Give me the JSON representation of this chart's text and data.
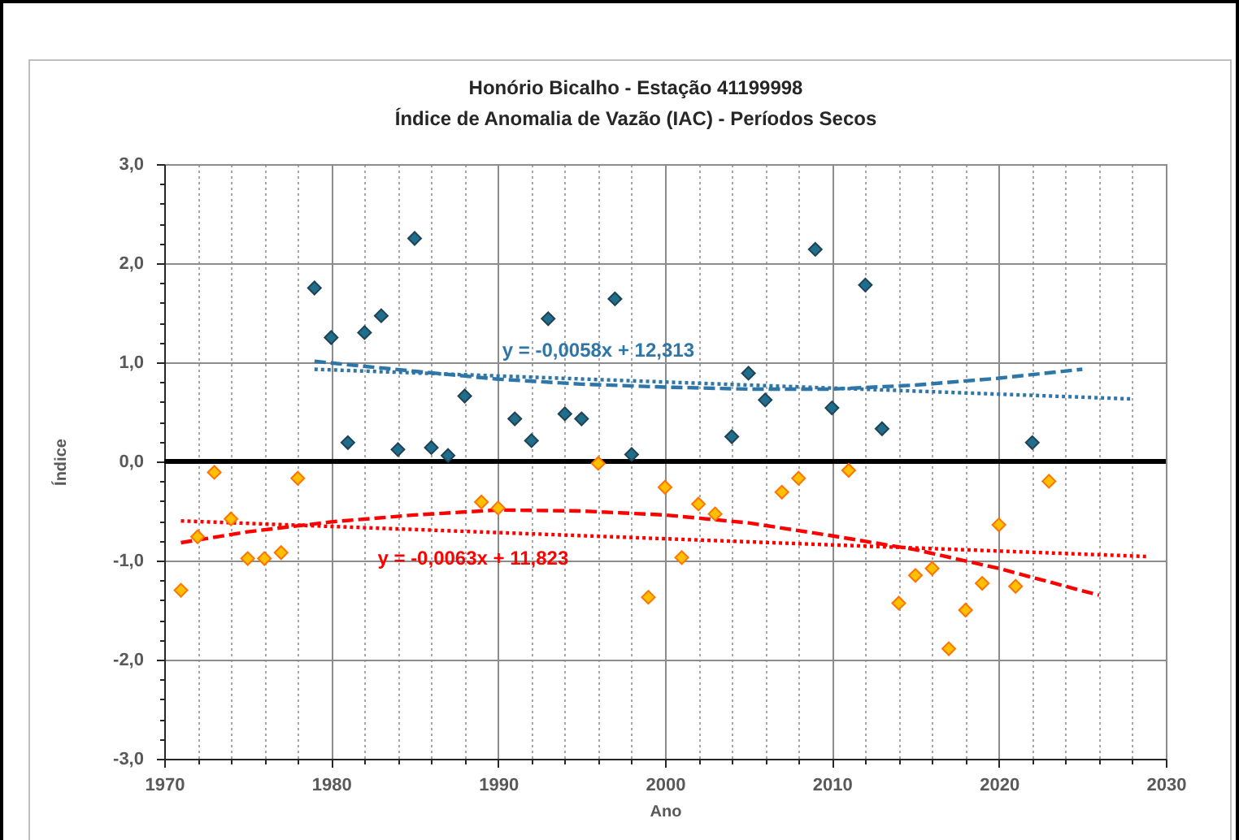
{
  "chart_data": {
    "type": "scatter",
    "title": "Honório Bicalho - Estação 41199998",
    "subtitle": "Índice de Anomalia de Vazão (IAC) - Períodos Secos",
    "xlabel": "Ano",
    "ylabel": "Índice",
    "xlim": [
      1970,
      2030
    ],
    "xticks": [
      1970,
      {
        "value": 1972,
        "label": null
      },
      {
        "value": 1974,
        "label": null
      },
      {
        "value": 1976,
        "label": null
      },
      {
        "value": 1978,
        "label": null
      },
      1980,
      {
        "value": 1982,
        "label": null
      },
      {
        "value": 1984,
        "label": null
      },
      {
        "value": 1986,
        "label": null
      },
      {
        "value": 1988,
        "label": null
      },
      1990,
      {
        "value": 1992,
        "label": null
      },
      {
        "value": 1994,
        "label": null
      },
      {
        "value": 1996,
        "label": null
      },
      {
        "value": 1998,
        "label": null
      },
      2000,
      {
        "value": 2002,
        "label": null
      },
      {
        "value": 2004,
        "label": null
      },
      {
        "value": 2006,
        "label": null
      },
      {
        "value": 2008,
        "label": null
      },
      2010,
      {
        "value": 2012,
        "label": null
      },
      {
        "value": 2014,
        "label": null
      },
      {
        "value": 2016,
        "label": null
      },
      {
        "value": 2018,
        "label": null
      },
      2020,
      {
        "value": 2022,
        "label": null
      },
      {
        "value": 2024,
        "label": null
      },
      {
        "value": 2026,
        "label": null
      },
      {
        "value": 2028,
        "label": null
      },
      2030
    ],
    "ylim": [
      -3,
      3
    ],
    "yticks": [
      {
        "value": -3,
        "label": "-3,0"
      },
      {
        "value": -2.8,
        "label": null
      },
      {
        "value": -2.6,
        "label": null
      },
      {
        "value": -2.4,
        "label": null
      },
      {
        "value": -2.2,
        "label": null
      },
      {
        "value": -2,
        "label": "-2,0"
      },
      {
        "value": -1.8,
        "label": null
      },
      {
        "value": -1.6,
        "label": null
      },
      {
        "value": -1.4,
        "label": null
      },
      {
        "value": -1.2,
        "label": null
      },
      {
        "value": -1,
        "label": "-1,0"
      },
      {
        "value": -0.8,
        "label": null
      },
      {
        "value": -0.6,
        "label": null
      },
      {
        "value": -0.4,
        "label": null
      },
      {
        "value": -0.2,
        "label": null
      },
      {
        "value": 0,
        "label": "0,0"
      },
      {
        "value": 0.2,
        "label": null
      },
      {
        "value": 0.4,
        "label": null
      },
      {
        "value": 0.6,
        "label": null
      },
      {
        "value": 0.8,
        "label": null
      },
      {
        "value": 1,
        "label": "1,0"
      },
      {
        "value": 1.2,
        "label": null
      },
      {
        "value": 1.4,
        "label": null
      },
      {
        "value": 1.6,
        "label": null
      },
      {
        "value": 1.8,
        "label": null
      },
      {
        "value": 2,
        "label": "2,0"
      },
      {
        "value": 2.2,
        "label": null
      },
      {
        "value": 2.4,
        "label": null
      },
      {
        "value": 2.6,
        "label": null
      },
      {
        "value": 2.8,
        "label": null
      },
      {
        "value": 3,
        "label": "3,0"
      }
    ],
    "grid": true,
    "ref_lines": [
      {
        "axis": "y",
        "value": 0,
        "color": "#000000"
      }
    ],
    "annotations": [
      {
        "text": "y = -0,0058x + 12,313",
        "x": 1996,
        "y": 0.83
      },
      {
        "text": "y = -0,0063x + 11,823",
        "x": 1988.5,
        "y": -0.71
      }
    ],
    "series": [
      {
        "color": "#1f6e8c",
        "marker": "diamond",
        "x": [
          1979,
          1980,
          1981,
          1982,
          1983,
          1984,
          1985,
          1986,
          1987,
          1988,
          1991,
          1992,
          1993,
          1994,
          1995,
          1997,
          1998,
          2004,
          2005,
          2006,
          2009,
          2010,
          2012,
          2013,
          2022
        ],
        "values": [
          1.75,
          1.25,
          0.19,
          1.3,
          1.47,
          0.12,
          2.25,
          0.14,
          0.06,
          0.66,
          0.43,
          0.21,
          1.44,
          0.48,
          0.43,
          1.64,
          0.07,
          0.25,
          0.89,
          0.62,
          2.14,
          0.54,
          1.78,
          0.33,
          0.19
        ]
      },
      {
        "color": "#ffc000",
        "marker": "diamond",
        "x": [
          1971,
          1972,
          1973,
          1974,
          1975,
          1976,
          1977,
          1978,
          1989,
          1990,
          1996,
          1999,
          2000,
          2001,
          2002,
          2003,
          2007,
          2008,
          2011,
          2014,
          2015,
          2016,
          2017,
          2018,
          2019,
          2020,
          2021,
          2023
        ],
        "values": [
          -1.3,
          -0.76,
          -0.11,
          -0.58,
          -0.98,
          -0.98,
          -0.92,
          -0.17,
          -0.41,
          -0.47,
          -0.02,
          -1.37,
          -0.26,
          -0.97,
          -0.43,
          -0.53,
          -0.31,
          -0.17,
          -0.09,
          -1.43,
          -1.15,
          -1.08,
          -1.89,
          -1.5,
          -1.23,
          -0.64,
          -1.26,
          -0.2
        ]
      },
      {
        "type": "line",
        "color": "#2e75a8",
        "line_style": "dashed",
        "x": [
          1979,
          1985,
          1990,
          1995,
          2000,
          2005,
          2010,
          2015,
          2020,
          2025
        ],
        "values": [
          1.01,
          0.91,
          0.83,
          0.78,
          0.75,
          0.73,
          0.73,
          0.77,
          0.84,
          0.93
        ]
      },
      {
        "type": "line",
        "color": "#2e75a8",
        "line_style": "dotted",
        "x": [
          1979,
          2028
        ],
        "values": [
          0.93,
          0.63
        ]
      },
      {
        "type": "line",
        "color": "#ff0000",
        "line_style": "dashed",
        "x": [
          1971,
          1975,
          1980,
          1985,
          1990,
          1995,
          2000,
          2005,
          2010,
          2015,
          2020,
          2026
        ],
        "values": [
          -0.82,
          -0.71,
          -0.61,
          -0.54,
          -0.49,
          -0.5,
          -0.54,
          -0.62,
          -0.75,
          -0.89,
          -1.08,
          -1.35
        ]
      },
      {
        "type": "line",
        "color": "#ff0000",
        "line_style": "dotted",
        "x": [
          1971,
          2029
        ],
        "values": [
          -0.6,
          -0.96
        ]
      }
    ]
  }
}
